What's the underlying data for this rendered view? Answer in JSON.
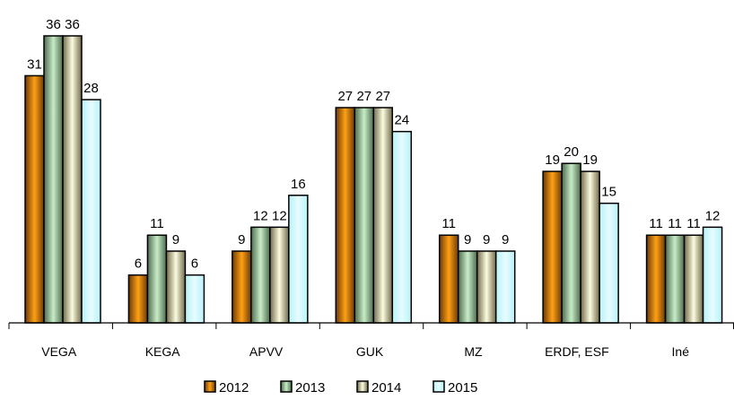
{
  "chart_data": {
    "type": "bar",
    "title": "",
    "xlabel": "",
    "ylabel": "",
    "ylim": [
      0,
      36
    ],
    "grid": false,
    "legend_position": "bottom",
    "categories": [
      "VEGA",
      "KEGA",
      "APVV",
      "GUK",
      "MZ",
      "ERDF, ESF",
      "Iné"
    ],
    "series": [
      {
        "name": "2012",
        "color": "#e08a1c",
        "values": [
          31,
          6,
          9,
          27,
          11,
          19,
          11
        ]
      },
      {
        "name": "2013",
        "color": "#7aa87a",
        "values": [
          36,
          11,
          12,
          27,
          9,
          20,
          11
        ]
      },
      {
        "name": "2014",
        "color": "#c8c49a",
        "values": [
          36,
          9,
          12,
          27,
          9,
          19,
          11
        ]
      },
      {
        "name": "2015",
        "color": "#ccf6fa",
        "values": [
          28,
          6,
          16,
          24,
          9,
          15,
          12
        ]
      }
    ]
  }
}
